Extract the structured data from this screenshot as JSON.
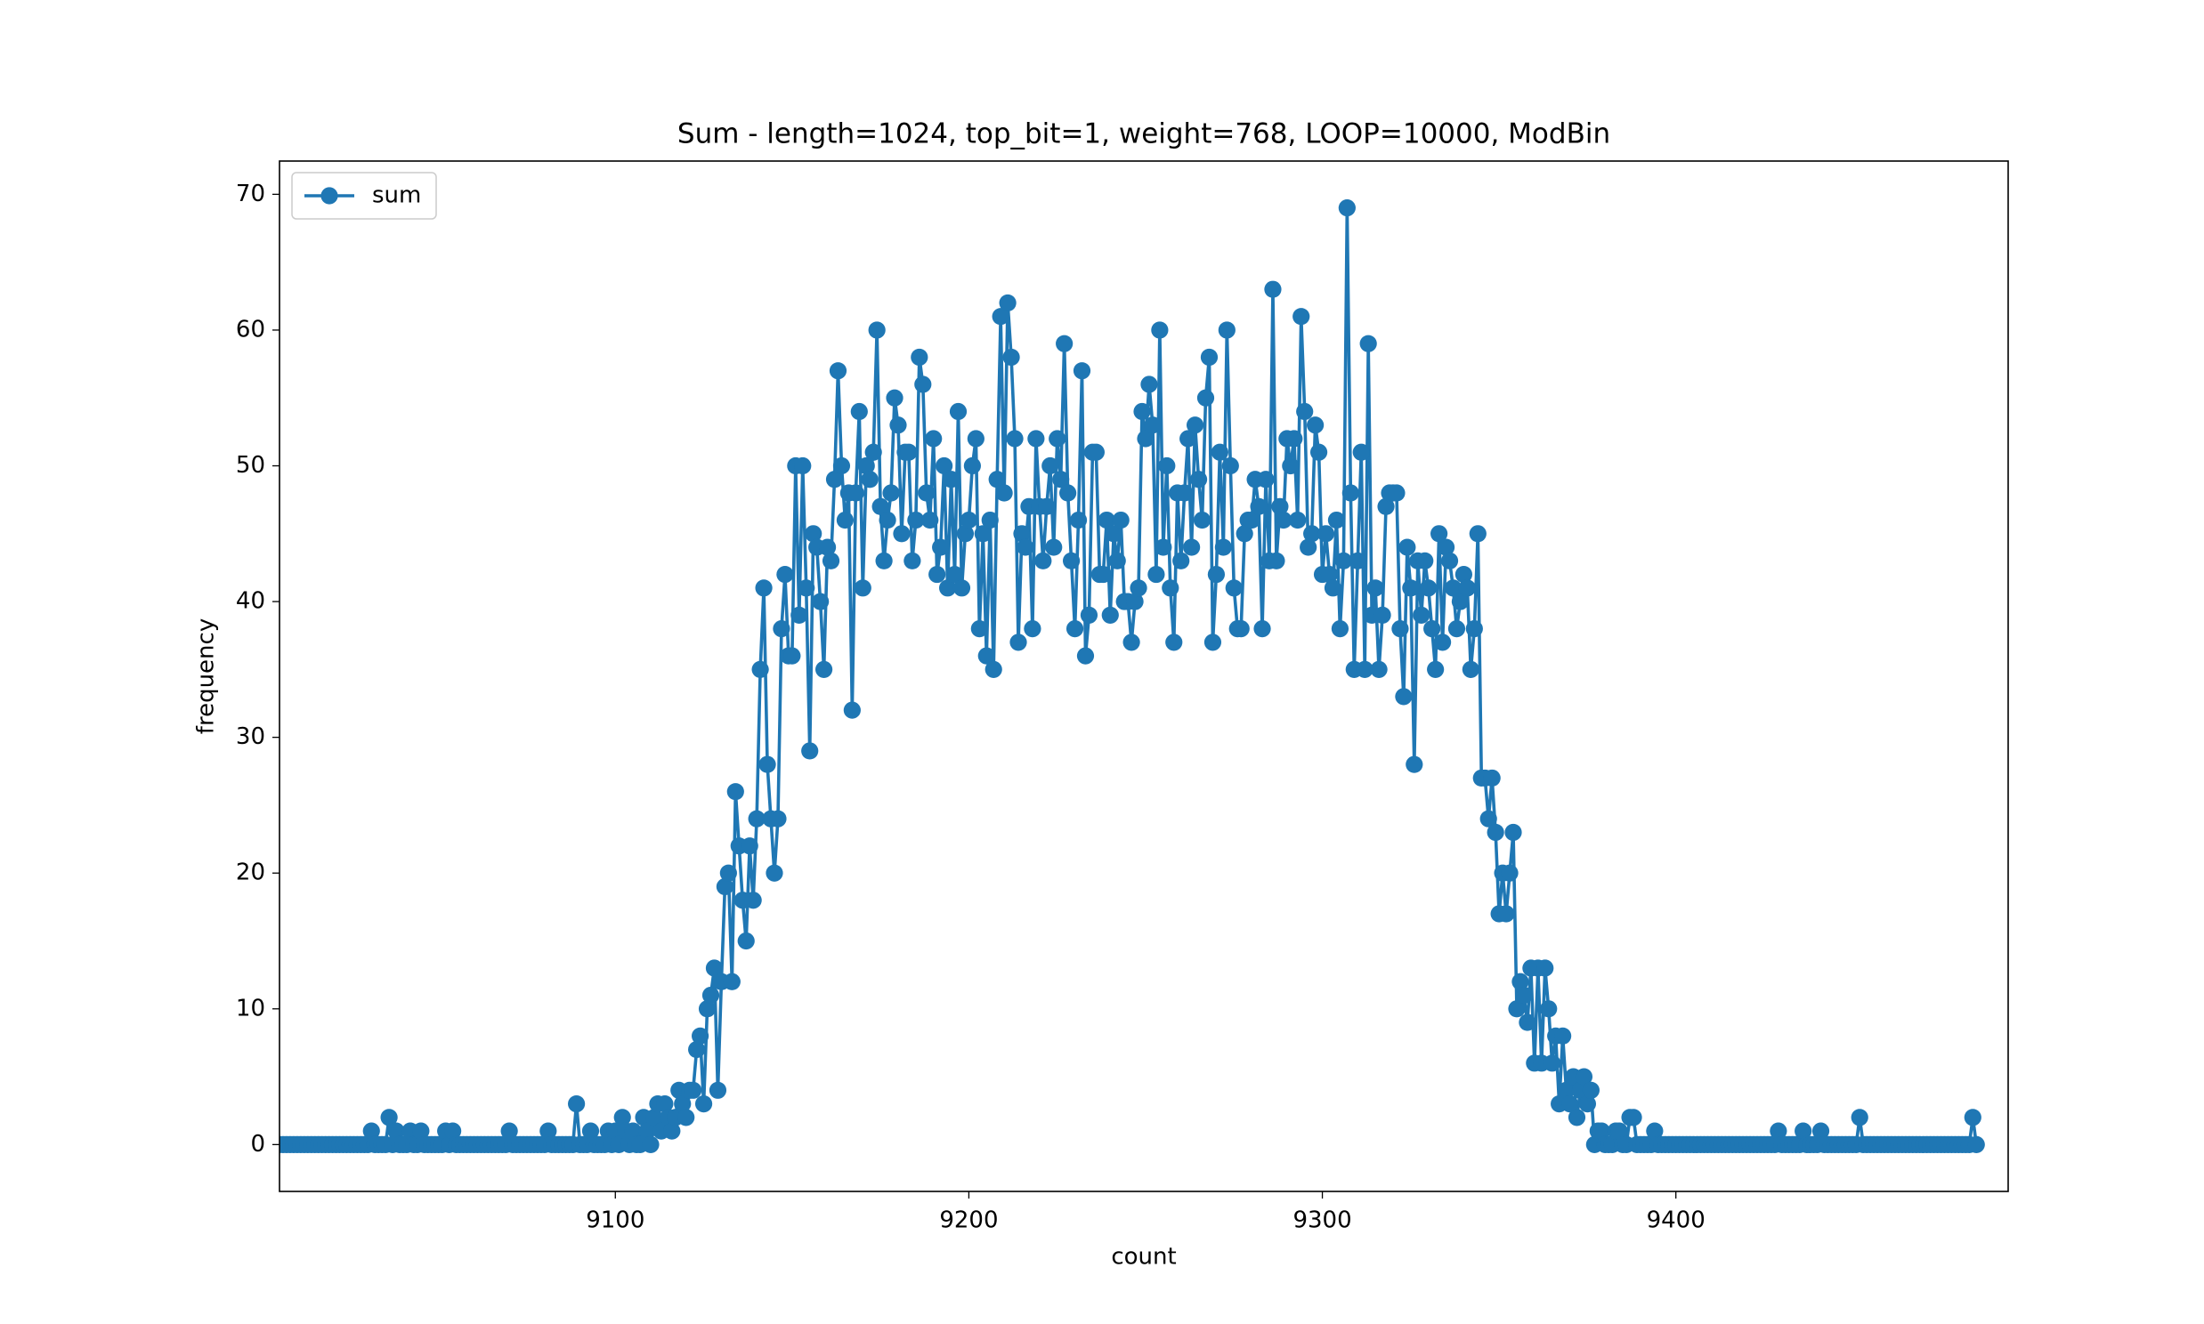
{
  "chart_data": {
    "type": "line",
    "title": "Sum - length=1024, top_bit=1, weight=768, LOOP=10000, ModBin",
    "x_label": "count",
    "y_label": "frequency",
    "legend": "upper left",
    "xlim": [
      9005,
      9494
    ],
    "xticks": [
      9100,
      9200,
      9300,
      9400
    ],
    "ylim": [
      -3.45,
      72.45
    ],
    "yticks": [
      0,
      10,
      20,
      30,
      40,
      50,
      60,
      70
    ],
    "x": [
      9005,
      9006,
      9007,
      9008,
      9009,
      9010,
      9011,
      9012,
      9013,
      9014,
      9015,
      9016,
      9017,
      9018,
      9019,
      9020,
      9021,
      9022,
      9023,
      9024,
      9025,
      9026,
      9027,
      9028,
      9029,
      9030,
      9031,
      9032,
      9033,
      9034,
      9035,
      9036,
      9037,
      9038,
      9039,
      9040,
      9041,
      9042,
      9043,
      9044,
      9045,
      9046,
      9047,
      9048,
      9049,
      9050,
      9051,
      9052,
      9053,
      9054,
      9055,
      9056,
      9057,
      9058,
      9059,
      9060,
      9061,
      9062,
      9063,
      9064,
      9065,
      9066,
      9067,
      9068,
      9069,
      9070,
      9071,
      9072,
      9073,
      9074,
      9075,
      9076,
      9077,
      9078,
      9079,
      9080,
      9081,
      9082,
      9083,
      9084,
      9085,
      9086,
      9087,
      9088,
      9089,
      9090,
      9091,
      9092,
      9093,
      9094,
      9095,
      9096,
      9097,
      9098,
      9099,
      9100,
      9101,
      9102,
      9103,
      9104,
      9105,
      9106,
      9107,
      9108,
      9109,
      9110,
      9111,
      9112,
      9113,
      9114,
      9115,
      9116,
      9117,
      9118,
      9119,
      9120,
      9121,
      9122,
      9123,
      9124,
      9125,
      9126,
      9127,
      9128,
      9129,
      9130,
      9131,
      9132,
      9133,
      9134,
      9135,
      9136,
      9137,
      9138,
      9139,
      9140,
      9141,
      9142,
      9143,
      9144,
      9145,
      9146,
      9147,
      9148,
      9149,
      9150,
      9151,
      9152,
      9153,
      9154,
      9155,
      9156,
      9157,
      9158,
      9159,
      9160,
      9161,
      9162,
      9163,
      9164,
      9165,
      9166,
      9167,
      9168,
      9169,
      9170,
      9171,
      9172,
      9173,
      9174,
      9175,
      9176,
      9177,
      9178,
      9179,
      9180,
      9181,
      9182,
      9183,
      9184,
      9185,
      9186,
      9187,
      9188,
      9189,
      9190,
      9191,
      9192,
      9193,
      9194,
      9195,
      9196,
      9197,
      9198,
      9199,
      9200,
      9201,
      9202,
      9203,
      9204,
      9205,
      9206,
      9207,
      9208,
      9209,
      9210,
      9211,
      9212,
      9213,
      9214,
      9215,
      9216,
      9217,
      9218,
      9219,
      9220,
      9221,
      9222,
      9223,
      9224,
      9225,
      9226,
      9227,
      9228,
      9229,
      9230,
      9231,
      9232,
      9233,
      9234,
      9235,
      9236,
      9237,
      9238,
      9239,
      9240,
      9241,
      9242,
      9243,
      9244,
      9245,
      9246,
      9247,
      9248,
      9249,
      9250,
      9251,
      9252,
      9253,
      9254,
      9255,
      9256,
      9257,
      9258,
      9259,
      9260,
      9261,
      9262,
      9263,
      9264,
      9265,
      9266,
      9267,
      9268,
      9269,
      9270,
      9271,
      9272,
      9273,
      9274,
      9275,
      9276,
      9277,
      9278,
      9279,
      9280,
      9281,
      9282,
      9283,
      9284,
      9285,
      9286,
      9287,
      9288,
      9289,
      9290,
      9291,
      9292,
      9293,
      9294,
      9295,
      9296,
      9297,
      9298,
      9299,
      9300,
      9301,
      9302,
      9303,
      9304,
      9305,
      9306,
      9307,
      9308,
      9309,
      9310,
      9311,
      9312,
      9313,
      9314,
      9315,
      9316,
      9317,
      9318,
      9319,
      9320,
      9321,
      9322,
      9323,
      9324,
      9325,
      9326,
      9327,
      9328,
      9329,
      9330,
      9331,
      9332,
      9333,
      9334,
      9335,
      9336,
      9337,
      9338,
      9339,
      9340,
      9341,
      9342,
      9343,
      9344,
      9345,
      9346,
      9347,
      9348,
      9349,
      9350,
      9351,
      9352,
      9353,
      9354,
      9355,
      9356,
      9357,
      9358,
      9359,
      9360,
      9361,
      9362,
      9363,
      9364,
      9365,
      9366,
      9367,
      9368,
      9369,
      9370,
      9371,
      9372,
      9373,
      9374,
      9375,
      9376,
      9377,
      9378,
      9379,
      9380,
      9381,
      9382,
      9383,
      9384,
      9385,
      9386,
      9387,
      9388,
      9389,
      9390,
      9391,
      9392,
      9393,
      9394,
      9395,
      9396,
      9397,
      9398,
      9399,
      9400,
      9401,
      9402,
      9403,
      9404,
      9405,
      9406,
      9407,
      9408,
      9409,
      9410,
      9411,
      9412,
      9413,
      9414,
      9415,
      9416,
      9417,
      9418,
      9419,
      9420,
      9421,
      9422,
      9423,
      9424,
      9425,
      9426,
      9427,
      9428,
      9429,
      9430,
      9431,
      9432,
      9433,
      9434,
      9435,
      9436,
      9437,
      9438,
      9439,
      9440,
      9441,
      9442,
      9443,
      9444,
      9445,
      9446,
      9447,
      9448,
      9449,
      9450,
      9451,
      9452,
      9453,
      9454,
      9455,
      9456,
      9457,
      9458,
      9459,
      9460,
      9461,
      9462,
      9463,
      9464,
      9465,
      9466,
      9467,
      9468,
      9469,
      9470,
      9471,
      9472,
      9473,
      9474,
      9475,
      9476,
      9477,
      9478,
      9479,
      9480,
      9481,
      9482,
      9483,
      9484,
      9485
    ],
    "series": [
      {
        "name": "sum",
        "color": "#1f77b4",
        "values": [
          0,
          0,
          0,
          0,
          0,
          0,
          0,
          0,
          0,
          0,
          0,
          0,
          0,
          0,
          0,
          0,
          0,
          0,
          0,
          0,
          0,
          0,
          0,
          0,
          0,
          0,
          1,
          0,
          0,
          0,
          0,
          2,
          0,
          1,
          0,
          0,
          0,
          1,
          0,
          0,
          1,
          0,
          0,
          0,
          0,
          0,
          0,
          1,
          0,
          1,
          0,
          0,
          0,
          0,
          0,
          0,
          0,
          0,
          0,
          0,
          0,
          0,
          0,
          0,
          0,
          1,
          0,
          0,
          0,
          0,
          0,
          0,
          0,
          0,
          0,
          0,
          1,
          0,
          0,
          0,
          0,
          0,
          0,
          0,
          3,
          0,
          0,
          0,
          1,
          0,
          0,
          0,
          0,
          1,
          0,
          1,
          0,
          2,
          1,
          0,
          1,
          0,
          0,
          2,
          1,
          0,
          2,
          3,
          1,
          3,
          2,
          1,
          2,
          4,
          3,
          2,
          4,
          4,
          7,
          8,
          3,
          10,
          11,
          13,
          4,
          12,
          19,
          20,
          12,
          26,
          22,
          18,
          15,
          22,
          18,
          24,
          35,
          41,
          28,
          24,
          20,
          24,
          38,
          42,
          36,
          36,
          50,
          39,
          50,
          41,
          29,
          45,
          44,
          40,
          35,
          44,
          43,
          49,
          57,
          50,
          46,
          48,
          32,
          48,
          54,
          41,
          50,
          49,
          51,
          60,
          47,
          43,
          46,
          48,
          55,
          53,
          45,
          51,
          51,
          43,
          46,
          58,
          56,
          48,
          46,
          52,
          42,
          44,
          50,
          41,
          49,
          42,
          54,
          41,
          45,
          46,
          50,
          52,
          38,
          45,
          36,
          46,
          35,
          49,
          61,
          48,
          62,
          58,
          52,
          37,
          45,
          44,
          47,
          38,
          52,
          47,
          43,
          47,
          50,
          44,
          52,
          49,
          59,
          48,
          43,
          38,
          46,
          57,
          36,
          39,
          51,
          51,
          42,
          42,
          46,
          39,
          45,
          43,
          46,
          40,
          40,
          37,
          40,
          41,
          54,
          52,
          56,
          53,
          42,
          60,
          44,
          50,
          41,
          37,
          48,
          43,
          48,
          52,
          44,
          53,
          49,
          46,
          55,
          58,
          37,
          42,
          51,
          44,
          60,
          50,
          41,
          38,
          38,
          45,
          46,
          46,
          49,
          47,
          38,
          49,
          43,
          63,
          43,
          47,
          46,
          52,
          50,
          52,
          46,
          61,
          54,
          44,
          45,
          53,
          51,
          42,
          45,
          42,
          41,
          46,
          38,
          43,
          69,
          48,
          35,
          43,
          51,
          35,
          59,
          39,
          41,
          35,
          39,
          47,
          48,
          48,
          48,
          38,
          33,
          44,
          41,
          28,
          43,
          39,
          43,
          41,
          38,
          35,
          45,
          37,
          44,
          43,
          41,
          38,
          40,
          42,
          41,
          35,
          38,
          45,
          27,
          27,
          24,
          27,
          23,
          17,
          20,
          17,
          20,
          23,
          10,
          12,
          11,
          9,
          13,
          6,
          13,
          6,
          13,
          10,
          6,
          8,
          3,
          8,
          4,
          3,
          5,
          2,
          4,
          5,
          3,
          4,
          0,
          1,
          1,
          0,
          0,
          0,
          1,
          1,
          0,
          0,
          2,
          2,
          0,
          0,
          0,
          0,
          0,
          1,
          0,
          0,
          0,
          0,
          0,
          0,
          0,
          0,
          0,
          0,
          0,
          0,
          0,
          0,
          0,
          0,
          0,
          0,
          0,
          0,
          0,
          0,
          0,
          0,
          0,
          0,
          0,
          0,
          0,
          0,
          0,
          0,
          0,
          0,
          1,
          0,
          0,
          0,
          0,
          0,
          0,
          1,
          0,
          0,
          0,
          0,
          1,
          0,
          0,
          0,
          0,
          0,
          0,
          0,
          0,
          0,
          0,
          2,
          0,
          0,
          0,
          0,
          0,
          0,
          0,
          0,
          0,
          0,
          0,
          0,
          0,
          0,
          0,
          0,
          0,
          0,
          0,
          0,
          0,
          0,
          0,
          0,
          0,
          0,
          0,
          0,
          0,
          0,
          0,
          2,
          0
        ]
      }
    ]
  }
}
